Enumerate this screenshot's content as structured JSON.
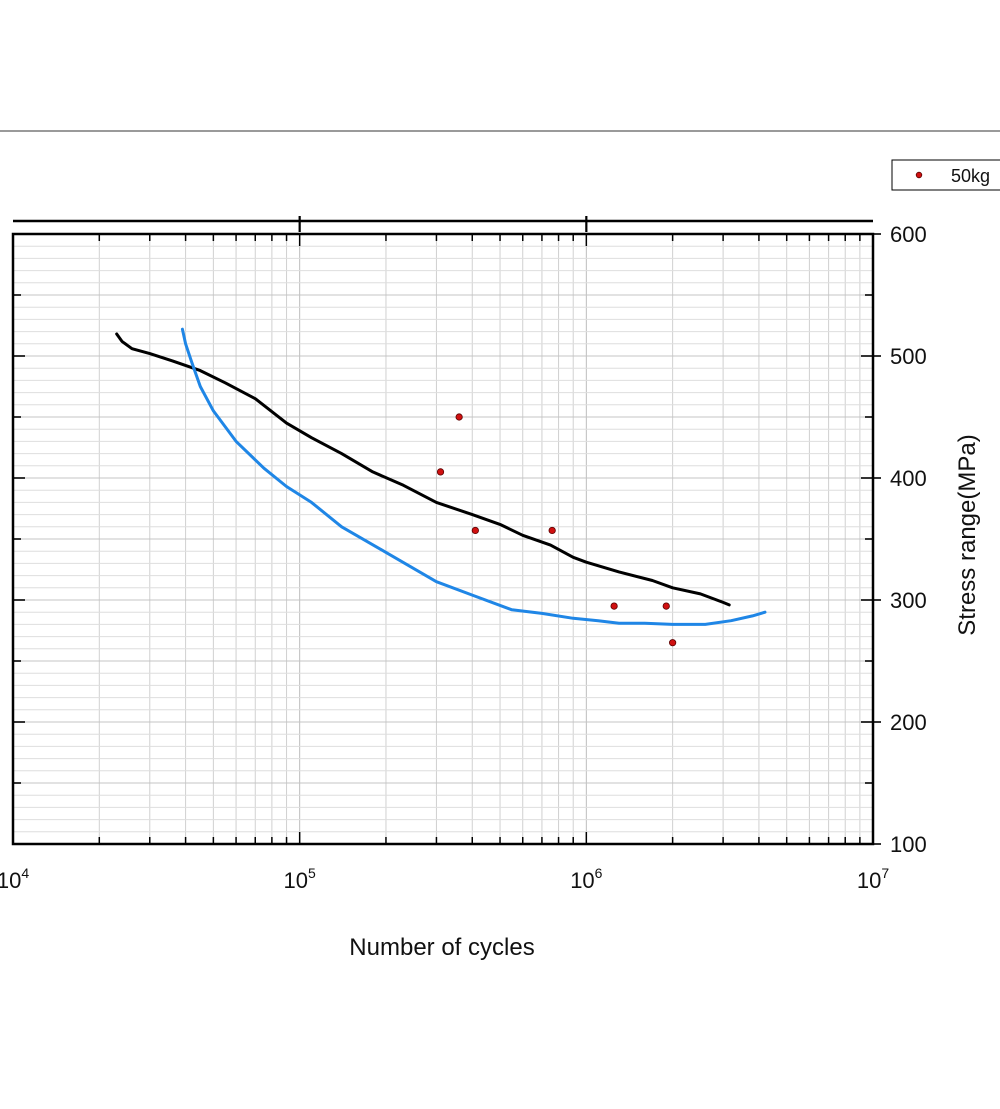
{
  "chart_data": {
    "type": "scatter",
    "xlabel": "Number of cycles",
    "ylabel": "Stress range(MPa)",
    "xscale": "log",
    "xlim": [
      10000,
      10000000
    ],
    "ylim": [
      100,
      600
    ],
    "grid": true,
    "x_ticks": [
      {
        "base": "10",
        "exp": "4",
        "value": 10000
      },
      {
        "base": "10",
        "exp": "5",
        "value": 100000
      },
      {
        "base": "10",
        "exp": "6",
        "value": 1000000
      },
      {
        "base": "10",
        "exp": "7",
        "value": 10000000
      }
    ],
    "y_ticks": [
      "100",
      "200",
      "300",
      "400",
      "500",
      "600"
    ],
    "legend": {
      "position": "top-right",
      "entries": [
        "50kg"
      ]
    },
    "colors": {
      "points": "#d01010",
      "black_curve": "#000000",
      "blue_curve": "#1f86e6"
    },
    "series": [
      {
        "name": "50kg",
        "kind": "points",
        "points": [
          {
            "x": 360000,
            "y": 450
          },
          {
            "x": 310000,
            "y": 405
          },
          {
            "x": 410000,
            "y": 357
          },
          {
            "x": 760000,
            "y": 357
          },
          {
            "x": 1250000,
            "y": 295
          },
          {
            "x": 1900000,
            "y": 295
          },
          {
            "x": 2000000,
            "y": 265
          }
        ]
      },
      {
        "kind": "line",
        "color": "black",
        "points": [
          {
            "x": 23000,
            "y": 518
          },
          {
            "x": 24000,
            "y": 512
          },
          {
            "x": 26000,
            "y": 506
          },
          {
            "x": 30000,
            "y": 502
          },
          {
            "x": 36000,
            "y": 496
          },
          {
            "x": 45000,
            "y": 488
          },
          {
            "x": 55000,
            "y": 478
          },
          {
            "x": 70000,
            "y": 465
          },
          {
            "x": 90000,
            "y": 445
          },
          {
            "x": 110000,
            "y": 433
          },
          {
            "x": 140000,
            "y": 420
          },
          {
            "x": 180000,
            "y": 405
          },
          {
            "x": 230000,
            "y": 394
          },
          {
            "x": 300000,
            "y": 380
          },
          {
            "x": 400000,
            "y": 370
          },
          {
            "x": 500000,
            "y": 362
          },
          {
            "x": 600000,
            "y": 353
          },
          {
            "x": 750000,
            "y": 345
          },
          {
            "x": 900000,
            "y": 335
          },
          {
            "x": 1000000,
            "y": 331
          },
          {
            "x": 1300000,
            "y": 323
          },
          {
            "x": 1700000,
            "y": 316
          },
          {
            "x": 2000000,
            "y": 310
          },
          {
            "x": 2500000,
            "y": 305
          },
          {
            "x": 3000000,
            "y": 298
          },
          {
            "x": 3150000,
            "y": 296
          }
        ]
      },
      {
        "kind": "line",
        "color": "blue",
        "points": [
          {
            "x": 39000,
            "y": 522
          },
          {
            "x": 40000,
            "y": 510
          },
          {
            "x": 42000,
            "y": 495
          },
          {
            "x": 45000,
            "y": 475
          },
          {
            "x": 50000,
            "y": 455
          },
          {
            "x": 60000,
            "y": 430
          },
          {
            "x": 75000,
            "y": 408
          },
          {
            "x": 90000,
            "y": 393
          },
          {
            "x": 110000,
            "y": 380
          },
          {
            "x": 140000,
            "y": 360
          },
          {
            "x": 200000,
            "y": 339
          },
          {
            "x": 300000,
            "y": 315
          },
          {
            "x": 400000,
            "y": 304
          },
          {
            "x": 550000,
            "y": 292
          },
          {
            "x": 700000,
            "y": 289
          },
          {
            "x": 900000,
            "y": 285
          },
          {
            "x": 1100000,
            "y": 283
          },
          {
            "x": 1300000,
            "y": 281
          },
          {
            "x": 1600000,
            "y": 281
          },
          {
            "x": 2000000,
            "y": 280
          },
          {
            "x": 2600000,
            "y": 280
          },
          {
            "x": 3200000,
            "y": 283
          },
          {
            "x": 3800000,
            "y": 287
          },
          {
            "x": 4200000,
            "y": 290
          }
        ]
      }
    ]
  }
}
